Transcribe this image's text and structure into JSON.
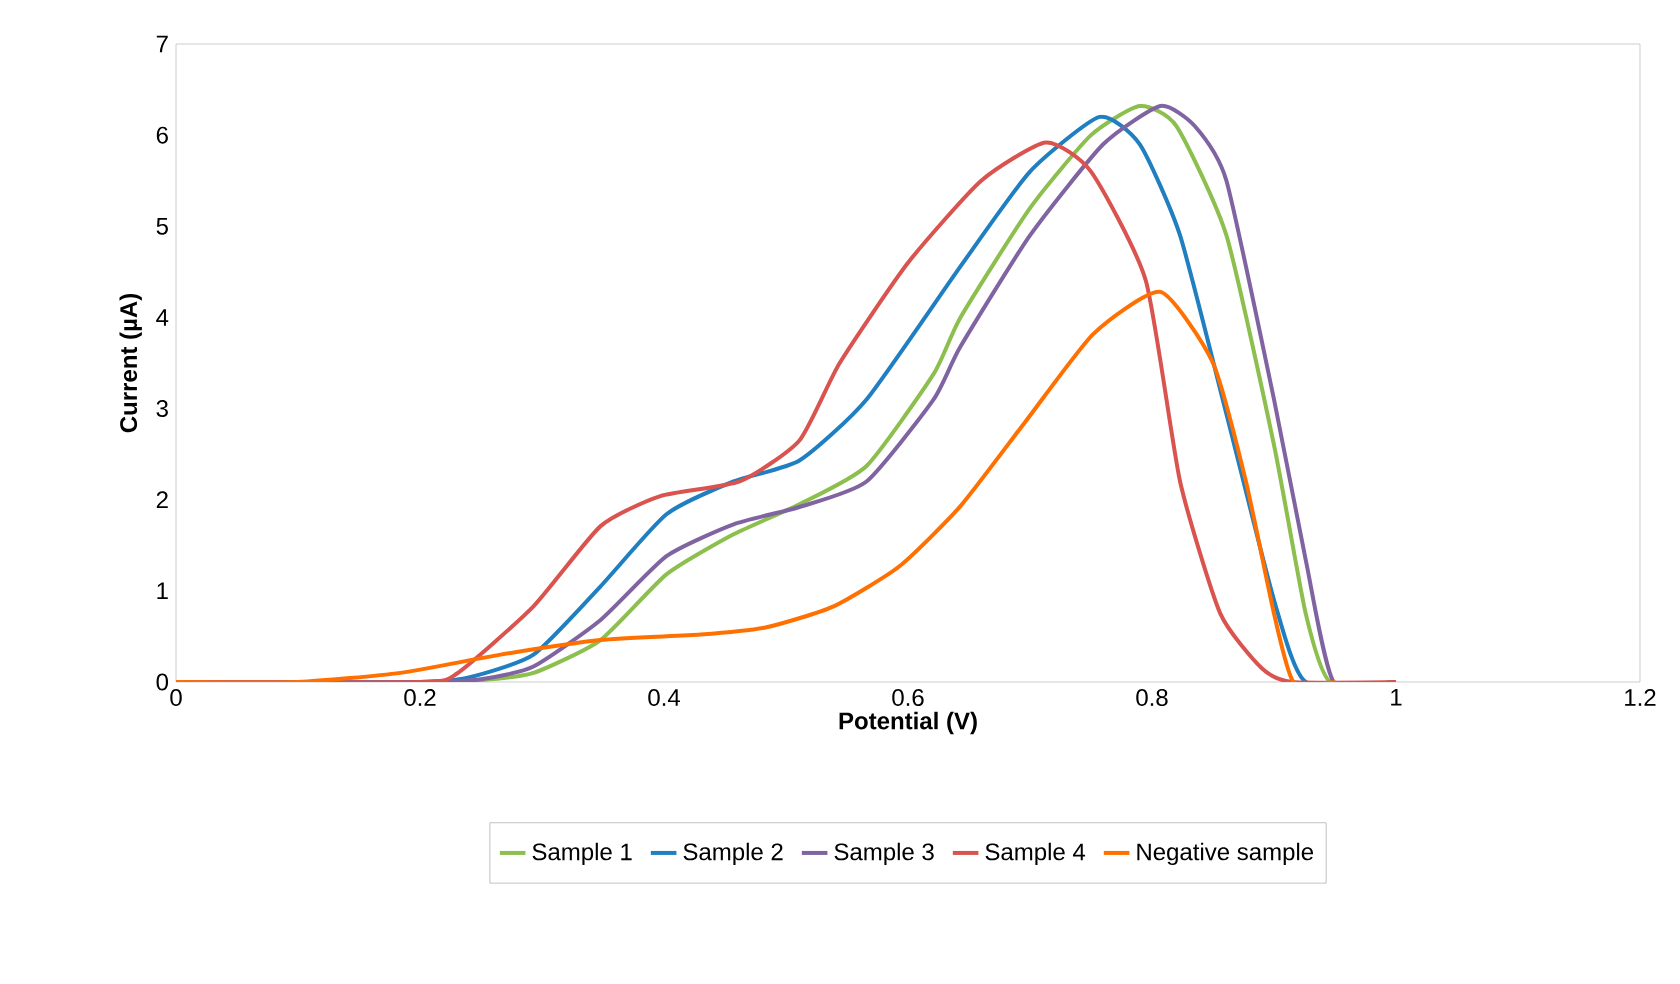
{
  "chart_data": {
    "type": "line",
    "xlabel": "Potential (V)",
    "ylabel": "Current (µA)",
    "xlim": [
      0,
      1.2
    ],
    "ylim": [
      0,
      7
    ],
    "xticks": [
      0,
      0.2,
      0.4,
      0.6,
      0.8,
      1,
      1.2
    ],
    "yticks": [
      0,
      1,
      2,
      3,
      4,
      5,
      6,
      7
    ],
    "grid": false,
    "legend": "bottom",
    "marker": "none",
    "line_style": "solid",
    "series": [
      {
        "name": "Sample 1",
        "color": "#8cbf4e",
        "x": [
          0,
          0.2,
          0.25,
          0.293,
          0.348,
          0.402,
          0.457,
          0.511,
          0.566,
          0.621,
          0.643,
          0.7,
          0.75,
          0.79,
          0.82,
          0.861,
          0.9,
          0.926,
          0.946,
          1
        ],
        "values": [
          0,
          0,
          0.02,
          0.1,
          0.46,
          1.18,
          1.62,
          1.95,
          2.37,
          3.38,
          4.0,
          5.2,
          6.0,
          6.32,
          6.1,
          4.9,
          2.6,
          0.75,
          0,
          0
        ]
      },
      {
        "name": "Sample 2",
        "color": "#1f7fc0",
        "x": [
          0,
          0.2,
          0.24,
          0.293,
          0.348,
          0.402,
          0.457,
          0.511,
          0.566,
          0.643,
          0.7,
          0.757,
          0.79,
          0.823,
          0.861,
          0.9,
          0.926,
          1
        ],
        "values": [
          0,
          0,
          0.05,
          0.3,
          1.05,
          1.84,
          2.2,
          2.43,
          3.1,
          4.56,
          5.6,
          6.2,
          5.9,
          4.9,
          2.94,
          0.9,
          0,
          0
        ]
      },
      {
        "name": "Sample 3",
        "color": "#8064a2",
        "x": [
          0,
          0.2,
          0.25,
          0.293,
          0.348,
          0.402,
          0.457,
          0.511,
          0.566,
          0.621,
          0.643,
          0.7,
          0.76,
          0.807,
          0.835,
          0.861,
          0.9,
          0.926,
          0.949,
          1
        ],
        "values": [
          0,
          0,
          0.03,
          0.17,
          0.68,
          1.38,
          1.73,
          1.92,
          2.2,
          3.1,
          3.68,
          4.9,
          5.9,
          6.32,
          6.1,
          5.5,
          3.1,
          1.34,
          0,
          0
        ]
      },
      {
        "name": "Sample 4",
        "color": "#d9534f",
        "x": [
          0,
          0.2,
          0.23,
          0.293,
          0.348,
          0.397,
          0.462,
          0.511,
          0.544,
          0.6,
          0.66,
          0.713,
          0.75,
          0.795,
          0.823,
          0.856,
          0.89,
          0.915,
          1
        ],
        "values": [
          0,
          0,
          0.09,
          0.83,
          1.71,
          2.04,
          2.2,
          2.65,
          3.5,
          4.6,
          5.5,
          5.92,
          5.6,
          4.4,
          2.2,
          0.75,
          0.15,
          0,
          0
        ]
      },
      {
        "name": "Negative sample",
        "color": "#ff7000",
        "x": [
          0,
          0.1,
          0.184,
          0.266,
          0.348,
          0.43,
          0.484,
          0.539,
          0.593,
          0.643,
          0.697,
          0.752,
          0.807,
          0.85,
          0.877,
          0.9,
          0.916,
          0.95
        ],
        "values": [
          0,
          0,
          0.1,
          0.3,
          0.46,
          0.52,
          0.6,
          0.83,
          1.27,
          1.93,
          2.87,
          3.82,
          4.28,
          3.5,
          2.2,
          0.75,
          0,
          0
        ]
      }
    ]
  }
}
